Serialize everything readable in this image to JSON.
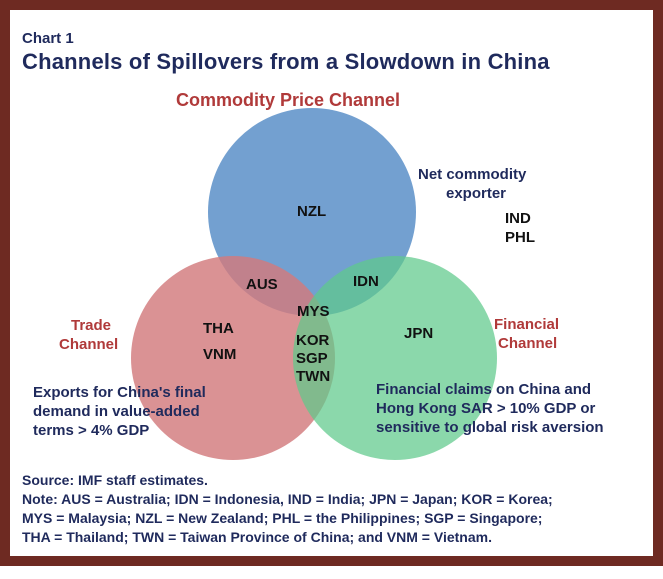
{
  "chart_label": "Chart 1",
  "title": "Channels of Spillovers from a Slowdown in China",
  "channels": {
    "commodity": "Commodity Price Channel",
    "trade": [
      "Trade",
      "Channel"
    ],
    "financial": [
      "Financial",
      "Channel"
    ]
  },
  "criteria": {
    "commodity": [
      "Net commodity",
      "exporter"
    ],
    "trade": [
      "Exports for China's final",
      "demand in value-added",
      "terms > 4% GDP"
    ],
    "financial": [
      "Financial claims on China and",
      "Hong Kong SAR > 10% GDP or",
      "sensitive to global risk aversion"
    ]
  },
  "countries": {
    "outside_commodity": [
      "IND",
      "PHL"
    ],
    "commodity_only": "NZL",
    "commodity_trade": "AUS",
    "commodity_financial": "IDN",
    "all_three": "MYS",
    "trade_financial": [
      "KOR",
      "SGP",
      "TWN"
    ],
    "trade_only": [
      "THA",
      "VNM"
    ],
    "financial_only": "JPN"
  },
  "colors": {
    "commodity_circle": "#5b8fc8",
    "trade_circle": "#d27a7c",
    "financial_circle": "#5ec98a",
    "frame": "#6e2a22",
    "title": "#1f2a5c",
    "channel_label": "#b03a3a"
  },
  "notes": [
    "Source: IMF staff estimates.",
    "Note: AUS = Australia; IDN = Indonesia, IND = India; JPN = Japan; KOR = Korea;",
    "MYS = Malaysia; NZL = New Zealand; PHL = the Philippines; SGP = Singapore;",
    "THA = Thailand; TWN = Taiwan Province of China; and VNM = Vietnam."
  ]
}
